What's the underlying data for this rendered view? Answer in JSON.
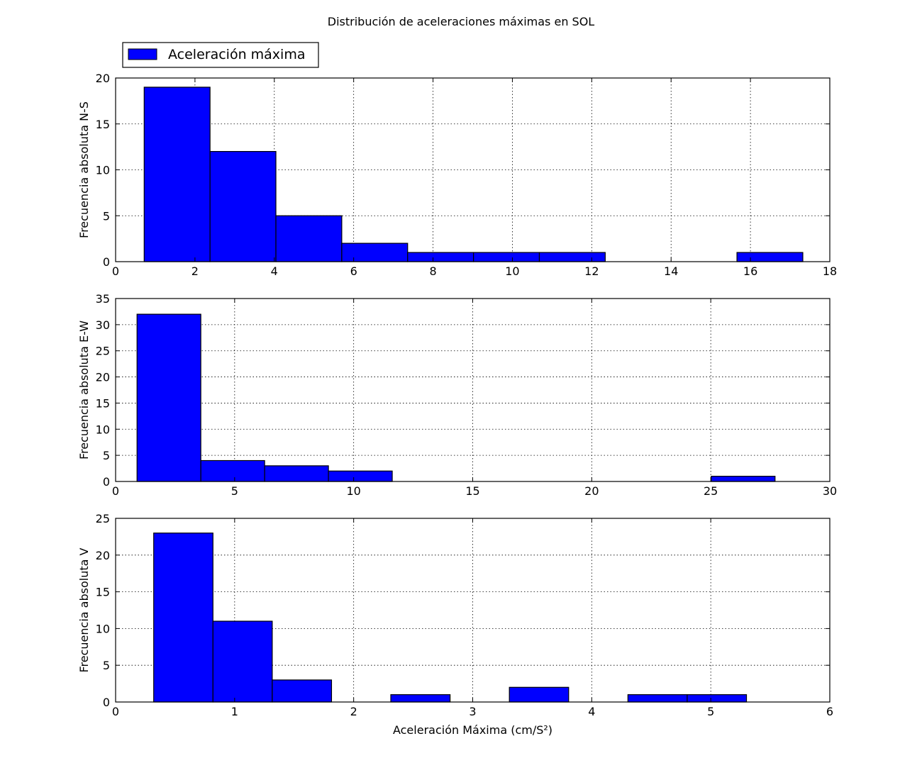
{
  "figure": {
    "title": "Distribución de aceleraciones máximas en SOL",
    "legend": {
      "label": "Aceleración máxima",
      "placement": "upper-left (above top panel)",
      "color": "#0000ff"
    }
  },
  "chart_data": [
    {
      "type": "bar",
      "subtype": "histogram",
      "title": "",
      "xlabel": "",
      "ylabel": "Frecuencia absoluta N-S",
      "xlim": [
        0,
        18
      ],
      "ylim": [
        0,
        20
      ],
      "xticks": [
        0,
        2,
        4,
        6,
        8,
        10,
        12,
        14,
        16,
        18
      ],
      "yticks": [
        0,
        5,
        10,
        15,
        20
      ],
      "grid": true,
      "bar_color": "#0000ff",
      "bin_edges": [
        0.72,
        2.38,
        4.04,
        5.7,
        7.36,
        9.02,
        10.68,
        12.34,
        14.0,
        15.66,
        17.32
      ],
      "values": [
        19,
        12,
        5,
        2,
        1,
        1,
        1,
        0,
        0,
        1
      ]
    },
    {
      "type": "bar",
      "subtype": "histogram",
      "title": "",
      "xlabel": "",
      "ylabel": "Frecuencia absoluta E-W",
      "xlim": [
        0,
        30
      ],
      "ylim": [
        0,
        35
      ],
      "xticks": [
        0,
        5,
        10,
        15,
        20,
        25,
        30
      ],
      "yticks": [
        0,
        5,
        10,
        15,
        20,
        25,
        30,
        35
      ],
      "grid": true,
      "bar_color": "#0000ff",
      "bin_edges": [
        0.9,
        3.58,
        6.26,
        8.94,
        11.62,
        14.3,
        16.98,
        19.66,
        22.34,
        25.02,
        27.7
      ],
      "values": [
        32,
        4,
        3,
        2,
        0,
        0,
        0,
        0,
        0,
        1
      ]
    },
    {
      "type": "bar",
      "subtype": "histogram",
      "title": "",
      "xlabel": "Aceleración Máxima (cm/S²)",
      "ylabel": "Frecuencia absoluta V",
      "xlim": [
        0,
        6
      ],
      "ylim": [
        0,
        25
      ],
      "xticks": [
        0,
        1,
        2,
        3,
        4,
        5,
        6
      ],
      "yticks": [
        0,
        5,
        10,
        15,
        20,
        25
      ],
      "grid": true,
      "bar_color": "#0000ff",
      "bin_edges": [
        0.32,
        0.818,
        1.316,
        1.814,
        2.312,
        2.81,
        3.308,
        3.806,
        4.304,
        4.802,
        5.3
      ],
      "values": [
        23,
        11,
        3,
        0,
        1,
        0,
        2,
        0,
        1,
        1
      ]
    }
  ]
}
